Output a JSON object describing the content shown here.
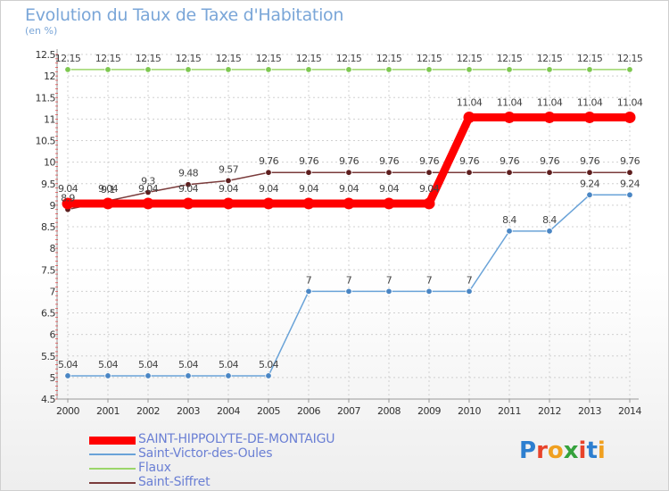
{
  "title": "Evolution du Taux de Taxe d'Habitation",
  "subtitle": "(en %)",
  "logo": {
    "text": "Proxiti",
    "colors": [
      "#2d7fd0",
      "#e8432a",
      "#f0a020",
      "#35a23c",
      "#e8432a",
      "#2d7fd0",
      "#f0a020"
    ]
  },
  "chart_data": {
    "type": "line",
    "title": "Evolution du Taux de Taxe d'Habitation",
    "ylabel": "(en %)",
    "xlabel": "",
    "x": [
      2000,
      2001,
      2002,
      2003,
      2004,
      2005,
      2006,
      2007,
      2008,
      2009,
      2010,
      2011,
      2012,
      2013,
      2014
    ],
    "ylim": [
      4.5,
      12.5
    ],
    "yticks": [
      "4.5",
      "5",
      "5.5",
      "6",
      "6.5",
      "7",
      "7.5",
      "8",
      "8.5",
      "9",
      "9.5",
      "10",
      "10.5",
      "11",
      "11.5",
      "12",
      "12.5"
    ],
    "grid": true,
    "legend_position": "bottom-left",
    "series": [
      {
        "name": "SAINT-HIPPOLYTE-DE-MONTAIGU",
        "color": "#ff0000",
        "thick": true,
        "values": [
          9.04,
          9.04,
          9.04,
          9.04,
          9.04,
          9.04,
          9.04,
          9.04,
          9.04,
          9.04,
          11.04,
          11.04,
          11.04,
          11.04,
          11.04
        ],
        "labels": [
          "9.04",
          "9.04",
          "9.04",
          "9.04",
          "9.04",
          "9.04",
          "9.04",
          "9.04",
          "9.04",
          "9.04",
          "11.04",
          "11.04",
          "11.04",
          "11.04",
          "11.04"
        ]
      },
      {
        "name": "Saint-Victor-des-Oules",
        "color": "#6aa3d8",
        "point_color": "#4a86c4",
        "values": [
          5.04,
          5.04,
          5.04,
          5.04,
          5.04,
          5.04,
          7,
          7,
          7,
          7,
          7,
          8.4,
          8.4,
          9.24,
          9.24
        ],
        "labels": [
          "5.04",
          "5.04",
          "5.04",
          "5.04",
          "5.04",
          "5.04",
          "7",
          "7",
          "7",
          "7",
          "7",
          "8.4",
          "8.4",
          "9.24",
          "9.24"
        ]
      },
      {
        "name": "Flaux",
        "color": "#9bd66a",
        "point_color": "#7ec850",
        "values": [
          12.15,
          12.15,
          12.15,
          12.15,
          12.15,
          12.15,
          12.15,
          12.15,
          12.15,
          12.15,
          12.15,
          12.15,
          12.15,
          12.15,
          12.15
        ],
        "labels": [
          "12.15",
          "12.15",
          "12.15",
          "12.15",
          "12.15",
          "12.15",
          "12.15",
          "12.15",
          "12.15",
          "12.15",
          "12.15",
          "12.15",
          "12.15",
          "12.15",
          "12.15"
        ]
      },
      {
        "name": "Saint-Siffret",
        "color": "#7a3b3b",
        "point_color": "#5e1e1e",
        "values": [
          8.9,
          9.1,
          9.3,
          9.48,
          9.57,
          9.76,
          9.76,
          9.76,
          9.76,
          9.76,
          9.76,
          9.76,
          9.76,
          9.76,
          9.76
        ],
        "labels": [
          "8.9",
          "9.1",
          "9.3",
          "9.48",
          "9.57",
          "9.76",
          "9.76",
          "9.76",
          "9.76",
          "9.76",
          "9.76",
          "9.76",
          "9.76",
          "9.76",
          "9.76"
        ]
      }
    ]
  }
}
